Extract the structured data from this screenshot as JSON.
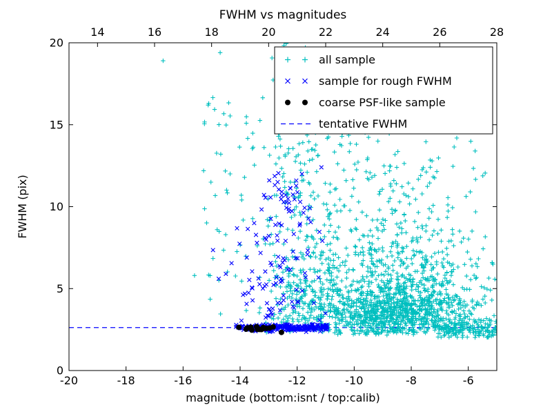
{
  "window": {
    "background": "#ffffff"
  },
  "chart_data": {
    "type": "scatter",
    "title": "FWHM vs magnitudes",
    "xlabel": "magnitude (bottom:isnt / top:calib)",
    "ylabel": "FWHM (pix)",
    "xlim": [
      -20,
      -5
    ],
    "ylim": [
      0,
      20
    ],
    "grid": false,
    "axes_color": "#000000",
    "x_ticks_bottom": {
      "values": [
        -20,
        -18,
        -16,
        -14,
        -12,
        -10,
        -8,
        -6
      ],
      "labels": [
        "-20",
        "-18",
        "-16",
        "-14",
        "-12",
        "-10",
        "-8",
        "-6"
      ]
    },
    "x_ticks_top": {
      "positions": [
        -19,
        -17,
        -15,
        -13,
        -11,
        -9,
        -7,
        -5
      ],
      "labels": [
        "14",
        "16",
        "18",
        "20",
        "22",
        "24",
        "26",
        "28"
      ]
    },
    "y_ticks": {
      "values": [
        0,
        5,
        10,
        15,
        20
      ],
      "labels": [
        "0",
        "5",
        "10",
        "15",
        "20"
      ]
    },
    "legend": {
      "position": "upper right",
      "border_color": "#000000",
      "background": "#ffffff"
    },
    "tentative_fwhm_value": 2.62,
    "series": [
      {
        "name": "all sample",
        "marker": "plus",
        "color": "#00bfbf",
        "seed": 101,
        "clusters": [
          {
            "count": 850,
            "x": {
              "type": "gauss",
              "mean": -8.6,
              "sigma": 1.35,
              "min": -11.2,
              "max": -4.85
            },
            "y": {
              "type": "gauss",
              "mean": 3.4,
              "sigma": 0.95,
              "min": 2.15,
              "max": 6.5
            }
          },
          {
            "count": 400,
            "x": {
              "type": "gauss",
              "mean": -8.2,
              "sigma": 1.55,
              "min": -11.2,
              "max": -4.85
            },
            "y": {
              "type": "gauss",
              "mean": 5.3,
              "sigma": 1.6,
              "min": 2.3,
              "max": 10.5
            }
          },
          {
            "count": 170,
            "x": {
              "type": "uniform",
              "min": -7.2,
              "max": -4.85
            },
            "y": {
              "type": "gauss",
              "mean": 2.55,
              "sigma": 0.3,
              "min": 2.0,
              "max": 3.4
            }
          },
          {
            "count": 260,
            "x": {
              "type": "gauss",
              "mean": -11.7,
              "sigma": 0.75,
              "min": -13.5,
              "max": -10.3
            },
            "y": {
              "type": "gauss",
              "mean": 4.3,
              "sigma": 1.6,
              "min": 2.2,
              "max": 8.5
            }
          },
          {
            "count": 170,
            "x": {
              "type": "gauss",
              "mean": -11.3,
              "sigma": 1.3,
              "min": -13.6,
              "max": -8.5
            },
            "y": {
              "type": "uniform",
              "min": 6.0,
              "max": 16.5
            }
          },
          {
            "count": 70,
            "x": {
              "type": "gauss",
              "mean": -12.1,
              "sigma": 0.55,
              "min": -13.3,
              "max": -10.8
            },
            "y": {
              "type": "uniform",
              "min": 8.0,
              "max": 20.0
            }
          },
          {
            "count": 120,
            "x": {
              "type": "gauss",
              "mean": -8.4,
              "sigma": 1.5,
              "min": -10.4,
              "max": -5.0
            },
            "y": {
              "type": "uniform",
              "min": 6.2,
              "max": 12.5
            }
          },
          {
            "count": 45,
            "x": {
              "type": "uniform",
              "min": -15.3,
              "max": -13.4
            },
            "y": {
              "type": "uniform",
              "min": 3.2,
              "max": 16.8
            }
          },
          {
            "count": 40,
            "x": {
              "type": "uniform",
              "min": -11.0,
              "max": -4.9
            },
            "y": {
              "type": "gauss",
              "mean": 13.5,
              "sigma": 2.2,
              "min": 10.0,
              "max": 20.0
            }
          }
        ],
        "extra_points": [
          [
            -16.7,
            18.9
          ],
          [
            -14.7,
            19.4
          ],
          [
            -15.1,
            16.3
          ],
          [
            -14.35,
            12.0
          ],
          [
            -15.6,
            5.8
          ],
          [
            -15.05,
            4.35
          ]
        ]
      },
      {
        "name": "sample for rough FWHM",
        "marker": "x",
        "color": "#0000ff",
        "seed": 202,
        "clusters": [
          {
            "count": 230,
            "x": {
              "type": "uniform",
              "min": -14.15,
              "max": -10.95
            },
            "y": {
              "type": "gauss",
              "mean": 2.62,
              "sigma": 0.1,
              "min": 2.35,
              "max": 2.95
            }
          },
          {
            "count": 95,
            "x": {
              "type": "gauss",
              "mean": -12.7,
              "sigma": 0.85,
              "min": -14.3,
              "max": -10.95
            },
            "y": {
              "type": "gauss",
              "mean": 6.3,
              "sigma": 2.0,
              "min": 3.0,
              "max": 12.3
            }
          },
          {
            "count": 28,
            "x": {
              "type": "gauss",
              "mean": -12.4,
              "sigma": 0.4,
              "min": -13.3,
              "max": -11.6
            },
            "y": {
              "type": "gauss",
              "mean": 10.7,
              "sigma": 0.9,
              "min": 8.8,
              "max": 12.4
            }
          }
        ],
        "extra_points": [
          [
            -14.95,
            7.35
          ],
          [
            -14.75,
            5.6
          ],
          [
            -14.5,
            5.9
          ],
          [
            -14.3,
            6.55
          ],
          [
            -11.15,
            12.4
          ]
        ]
      },
      {
        "name": "coarse PSF-like sample",
        "marker": "circle",
        "color": "#000000",
        "seed": 303,
        "clusters": [
          {
            "count": 18,
            "x": {
              "type": "uniform",
              "min": -14.05,
              "max": -12.8
            },
            "y": {
              "type": "gauss",
              "mean": 2.58,
              "sigma": 0.06,
              "min": 2.45,
              "max": 2.72
            }
          }
        ],
        "extra_points": [
          [
            -12.55,
            2.33
          ]
        ]
      },
      {
        "name": "tentative FWHM",
        "marker": "dashed-line",
        "color": "#0000ff",
        "y": 2.62
      }
    ]
  }
}
